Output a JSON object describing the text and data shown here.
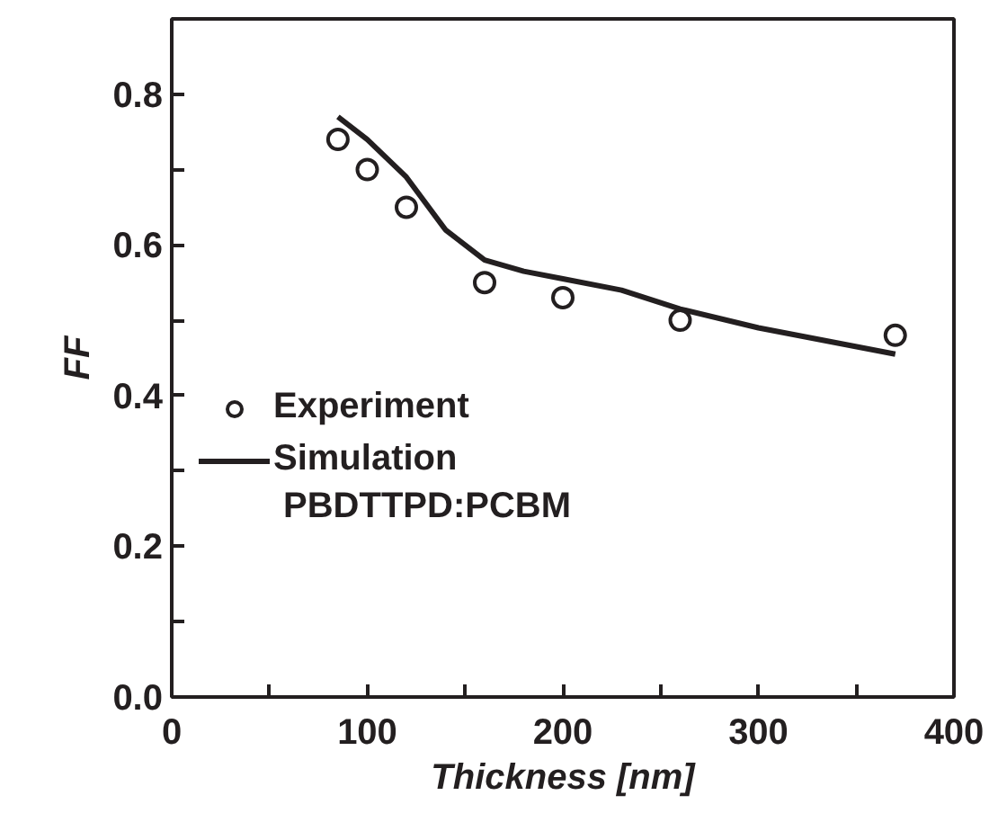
{
  "chart_data": {
    "type": "scatter",
    "xlabel": "Thickness [nm]",
    "ylabel": "FF",
    "xlim": [
      0,
      400
    ],
    "ylim": [
      0,
      0.9
    ],
    "xticks": [
      0,
      {
        "value": 50,
        "label": null
      },
      100,
      {
        "value": 150,
        "label": null
      },
      200,
      {
        "value": 250,
        "label": null
      },
      300,
      {
        "value": 350,
        "label": null
      },
      400
    ],
    "yticks": [
      {
        "value": 0,
        "label": "0.0"
      },
      {
        "value": 0.1,
        "label": null
      },
      0.2,
      {
        "value": 0.3,
        "label": null
      },
      0.4,
      {
        "value": 0.5,
        "label": null
      },
      0.6,
      {
        "value": 0.7,
        "label": null
      },
      0.8
    ],
    "grid": false,
    "legend": "left",
    "series": [
      {
        "name": "Experiment",
        "marker": "circle",
        "color": "#231f20",
        "x": [
          85,
          100,
          120,
          160,
          200,
          260,
          370
        ],
        "values": [
          0.74,
          0.7,
          0.65,
          0.55,
          0.53,
          0.5,
          0.48
        ]
      },
      {
        "name": "Simulation",
        "type": "line",
        "color": "#231f20",
        "line_style": "solid",
        "x": [
          85,
          100,
          120,
          140,
          160,
          180,
          200,
          230,
          260,
          300,
          370
        ],
        "values": [
          0.77,
          0.74,
          0.69,
          0.62,
          0.58,
          0.565,
          0.555,
          0.54,
          0.515,
          0.49,
          0.455
        ]
      }
    ],
    "annotations": [
      "PBDTTPD:PCBM"
    ]
  }
}
